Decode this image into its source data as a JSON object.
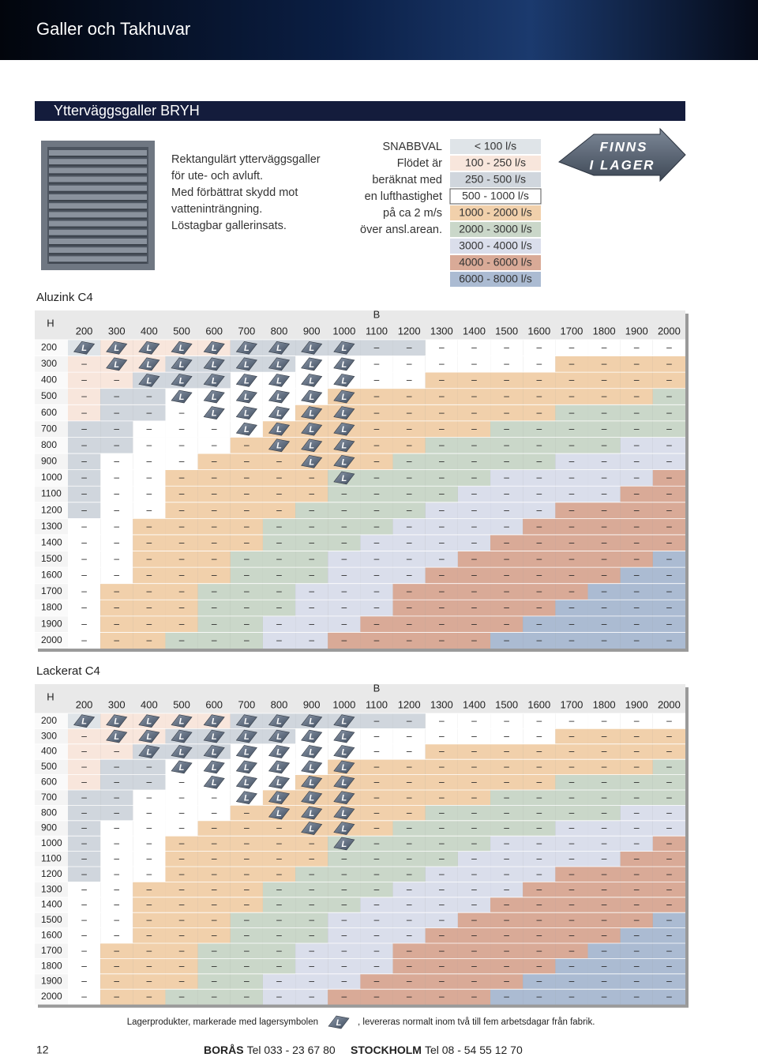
{
  "header": {
    "title": "Galler och Takhuvar"
  },
  "section": {
    "title": "Ytterväggsgaller BRYH"
  },
  "description": [
    "Rektangulärt ytterväggsgaller",
    "för ute- och avluft.",
    "Med förbättrat skydd mot",
    "vatteninträngning.",
    "Löstagbar gallerinsats."
  ],
  "quick_select": {
    "lines": [
      "SNABBVAL",
      "Flödet är",
      "beräknat med",
      "en lufthastighet",
      "på ca 2 m/s",
      "över ansl.arean."
    ],
    "legend": [
      {
        "label": "< 100 l/s",
        "color": "#dfe4e8"
      },
      {
        "label": "100 - 250 l/s",
        "color": "#f8e6dc"
      },
      {
        "label": "250 - 500 l/s",
        "color": "#d0d6dd"
      },
      {
        "label": "500 - 1000 l/s",
        "color": "#ffffff"
      },
      {
        "label": "1000 - 2000 l/s",
        "color": "#f1d0ab"
      },
      {
        "label": "2000 - 3000 l/s",
        "color": "#cad7c9"
      },
      {
        "label": "3000 - 4000 l/s",
        "color": "#dadeeb"
      },
      {
        "label": "4000 - 6000 l/s",
        "color": "#d9aa97"
      },
      {
        "label": "6000 - 8000 l/s",
        "color": "#abbbd2"
      }
    ]
  },
  "badge": {
    "lines": [
      "FINNS",
      "I LAGER"
    ]
  },
  "cell_tones": [
    "0111122222233333333",
    "1112222333333334444",
    "1122233333344444444",
    "1223333344444444445",
    "1223333444444445555",
    "2233334444444555555",
    "2233344444455555566",
    "2333444444555556666",
    "2334444455555666667",
    "2334444455556666677",
    "2334444555566667777",
    "3344445555666677777",
    "3344445556666777777",
    "3344455566667777778",
    "3344455566677777788",
    "3444555666777777888",
    "3444555666777778888",
    "3444556667777788888",
    "3445556677777888888"
  ],
  "tables": [
    {
      "title": "Aluzink C4",
      "row_header": "H",
      "column_header": "B",
      "columns": [
        "200",
        "300",
        "400",
        "500",
        "600",
        "700",
        "800",
        "900",
        "1000",
        "1100",
        "1200",
        "1300",
        "1400",
        "1500",
        "1600",
        "1700",
        "1800",
        "1900",
        "2000"
      ],
      "rows": [
        {
          "label": "200",
          "cells": "LLLLLLLLL––––––––––"
        },
        {
          "label": "300",
          "cells": "–LLLLLLLL––––––––––"
        },
        {
          "label": "400",
          "cells": "––LLLLLLL––––––––––"
        },
        {
          "label": "500",
          "cells": "–––LLLLLL––––––––––"
        },
        {
          "label": "600",
          "cells": "––––LLLLL––––––––––"
        },
        {
          "label": "700",
          "cells": "–––––LLLL––––––––––"
        },
        {
          "label": "800",
          "cells": "––––––LLL––––––––––"
        },
        {
          "label": "900",
          "cells": "–––––––LL––––––––––"
        },
        {
          "label": "1000",
          "cells": "––––––––L––––––––––"
        },
        {
          "label": "1100",
          "cells": "–––––––––––––––––––"
        },
        {
          "label": "1200",
          "cells": "–––––––––––––––––––"
        },
        {
          "label": "1300",
          "cells": "–––––––––––––––––––"
        },
        {
          "label": "1400",
          "cells": "–––––––––––––––––––"
        },
        {
          "label": "1500",
          "cells": "–––––––––––––––––––"
        },
        {
          "label": "1600",
          "cells": "–––––––––––––––––––"
        },
        {
          "label": "1700",
          "cells": "–––––––––––––––––––"
        },
        {
          "label": "1800",
          "cells": "–––––––––––––––––––"
        },
        {
          "label": "1900",
          "cells": "–––––––––––––––––––"
        },
        {
          "label": "2000",
          "cells": "–––––––––––––––––––"
        }
      ]
    },
    {
      "title": "Lackerat C4",
      "row_header": "H",
      "column_header": "B",
      "columns": [
        "200",
        "300",
        "400",
        "500",
        "600",
        "700",
        "800",
        "900",
        "1000",
        "1100",
        "1200",
        "1300",
        "1400",
        "1500",
        "1600",
        "1700",
        "1800",
        "1900",
        "2000"
      ],
      "rows": [
        {
          "label": "200",
          "cells": "LLLLLLLLL––––––––––"
        },
        {
          "label": "300",
          "cells": "–LLLLLLLL––––––––––"
        },
        {
          "label": "400",
          "cells": "––LLLLLLL––––––––––"
        },
        {
          "label": "500",
          "cells": "–––LLLLLL––––––––––"
        },
        {
          "label": "600",
          "cells": "––––LLLLL––––––––––"
        },
        {
          "label": "700",
          "cells": "–––––LLLL––––––––––"
        },
        {
          "label": "800",
          "cells": "––––––LLL––––––––––"
        },
        {
          "label": "900",
          "cells": "–––––––LL––––––––––"
        },
        {
          "label": "1000",
          "cells": "––––––––L––––––––––"
        },
        {
          "label": "1100",
          "cells": "–––––––––––––––––––"
        },
        {
          "label": "1200",
          "cells": "–––––––––––––––––––"
        },
        {
          "label": "1300",
          "cells": "–––––––––––––––––––"
        },
        {
          "label": "1400",
          "cells": "–––––––––––––––––––"
        },
        {
          "label": "1500",
          "cells": "–––––––––––––––––––"
        },
        {
          "label": "1600",
          "cells": "–––––––––––––––––––"
        },
        {
          "label": "1700",
          "cells": "–––––––––––––––––––"
        },
        {
          "label": "1800",
          "cells": "–––––––––––––––––––"
        },
        {
          "label": "1900",
          "cells": "–––––––––––––––––––"
        },
        {
          "label": "2000",
          "cells": "–––––––––––––––––––"
        }
      ]
    }
  ],
  "note": {
    "before": "Lagerprodukter, markerade med lagersymbolen",
    "symbol": "L",
    "after": ", levereras normalt inom två till fem arbetsdagar från fabrik."
  },
  "footer": {
    "page": "12",
    "offices": [
      {
        "city": "BORÅS",
        "phone": "Tel 033 - 23 67 80"
      },
      {
        "city": "STOCKHOLM",
        "phone": "Tel 08 - 54 55 12 70"
      }
    ]
  }
}
